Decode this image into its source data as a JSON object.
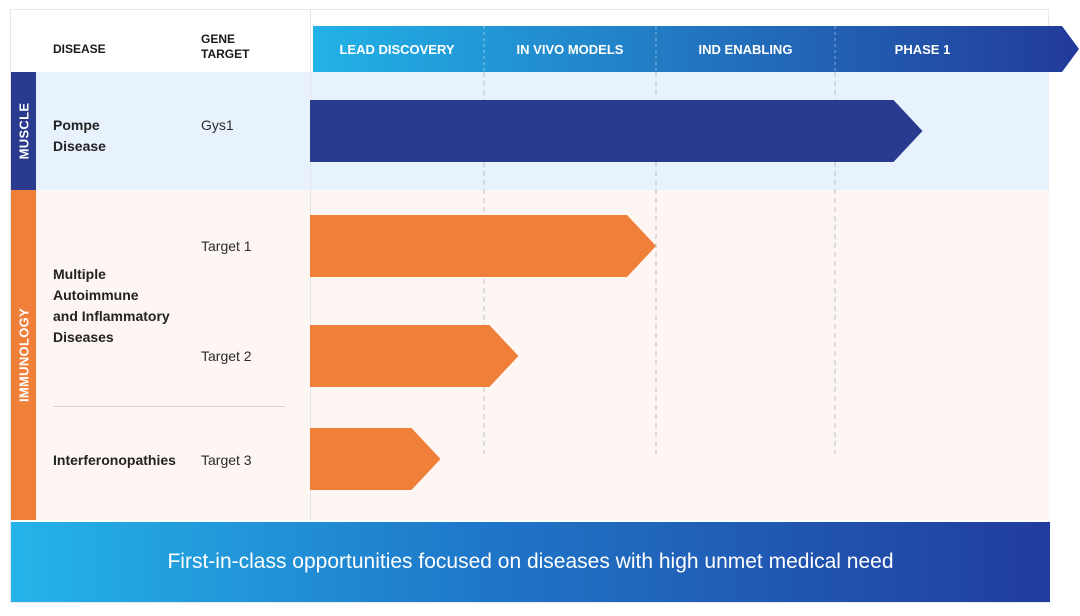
{
  "headers": {
    "disease": "DISEASE",
    "gene_target_line1": "GENE",
    "gene_target_line2": "TARGET"
  },
  "categories": {
    "muscle": "MUSCLE",
    "immunology": "IMMUNOLOGY"
  },
  "rows": [
    {
      "disease_lines": [
        "Pompe",
        "Disease"
      ],
      "target": "Gys1"
    },
    {
      "disease_lines": [
        "Multiple",
        "Autoimmune",
        "and Inflammatory",
        "Diseases"
      ],
      "target": "Target 1"
    },
    {
      "disease_lines": [],
      "target": "Target 2"
    },
    {
      "disease_lines": [
        "Interferonopathies"
      ],
      "target": "Target 3"
    }
  ],
  "footer": {
    "text": "First-in-class opportunities focused on diseases with high unmet medical need"
  },
  "colors": {
    "muscle": "#2a3a8e",
    "immunology": "#f07f3a",
    "header_gradient_start": "#22b2e6",
    "header_gradient_end": "#223a9a",
    "stage_divider": "#b9c2cc"
  },
  "chart_data": {
    "type": "bar",
    "orientation": "horizontal",
    "stages": [
      "LEAD DISCOVERY",
      "IN VIVO MODELS",
      "IND ENABLING",
      "PHASE 1"
    ],
    "categories": [
      "Gys1",
      "Target 1",
      "Target 2",
      "Target 3"
    ],
    "series": [
      {
        "category_group": "MUSCLE",
        "values": [
          3.5,
          null,
          null,
          null
        ]
      },
      {
        "category_group": "IMMUNOLOGY",
        "values": [
          null,
          2.0,
          1.2,
          0.75
        ]
      }
    ],
    "xlim": [
      0,
      4
    ],
    "value_unit": "stages completed"
  }
}
